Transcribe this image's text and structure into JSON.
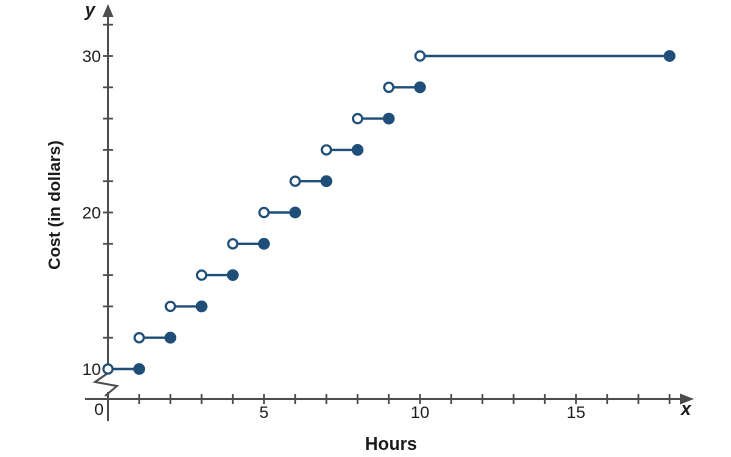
{
  "chart_data": {
    "type": "step",
    "title": "",
    "xlabel": "Hours",
    "ylabel": "Cost (in dollars)",
    "x_var": "x",
    "y_var": "y",
    "xlim": [
      0,
      18.7
    ],
    "ylim": [
      10,
      32
    ],
    "y_axis_break_below": 10,
    "grid": false,
    "x_ticks": [
      1,
      2,
      3,
      4,
      5,
      6,
      7,
      8,
      9,
      10,
      11,
      12,
      13,
      14,
      15,
      16,
      17,
      18
    ],
    "x_tick_labels": [
      {
        "value": 0,
        "label": "0"
      },
      {
        "value": 5,
        "label": "5"
      },
      {
        "value": 10,
        "label": "10"
      },
      {
        "value": 15,
        "label": "15"
      }
    ],
    "y_ticks": [
      12,
      14,
      16,
      18,
      20,
      22,
      24,
      26,
      28,
      30,
      32
    ],
    "y_tick_labels": [
      {
        "value": 10,
        "label": "10"
      },
      {
        "value": 20,
        "label": "20"
      },
      {
        "value": 30,
        "label": "30"
      }
    ],
    "segments": [
      {
        "x_start": 0,
        "x_end": 1,
        "y": 10,
        "left": "open",
        "right": "closed"
      },
      {
        "x_start": 1,
        "x_end": 2,
        "y": 12,
        "left": "open",
        "right": "closed"
      },
      {
        "x_start": 2,
        "x_end": 3,
        "y": 14,
        "left": "open",
        "right": "closed"
      },
      {
        "x_start": 3,
        "x_end": 4,
        "y": 16,
        "left": "open",
        "right": "closed"
      },
      {
        "x_start": 4,
        "x_end": 5,
        "y": 18,
        "left": "open",
        "right": "closed"
      },
      {
        "x_start": 5,
        "x_end": 6,
        "y": 20,
        "left": "open",
        "right": "closed"
      },
      {
        "x_start": 6,
        "x_end": 7,
        "y": 22,
        "left": "open",
        "right": "closed"
      },
      {
        "x_start": 7,
        "x_end": 8,
        "y": 24,
        "left": "open",
        "right": "closed"
      },
      {
        "x_start": 8,
        "x_end": 9,
        "y": 26,
        "left": "open",
        "right": "closed"
      },
      {
        "x_start": 9,
        "x_end": 10,
        "y": 28,
        "left": "open",
        "right": "closed"
      },
      {
        "x_start": 10,
        "x_end": 18,
        "y": 30,
        "left": "open",
        "right": "closed"
      }
    ]
  },
  "colors": {
    "series": "#1f4e79",
    "axis": "#4d4d4d",
    "text": "#1a1a1a",
    "background": "#ffffff"
  }
}
